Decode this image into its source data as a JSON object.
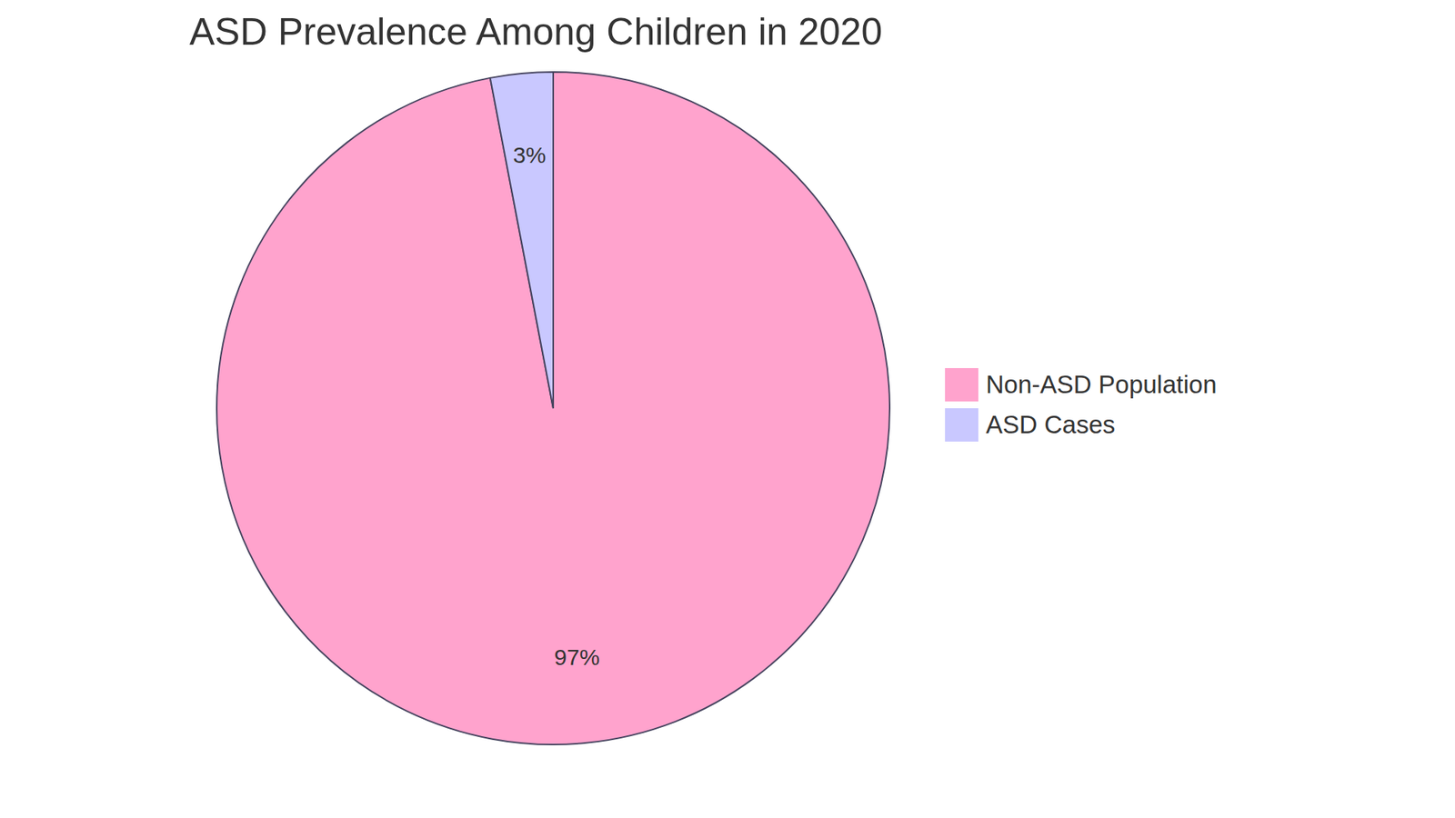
{
  "chart_data": {
    "type": "pie",
    "title": "ASD Prevalence Among Children in 2020",
    "categories": [
      "Non-ASD Population",
      "ASD Cases"
    ],
    "values": [
      97,
      3
    ],
    "value_labels": [
      "97%",
      "3%"
    ],
    "colors": [
      "#FFA3CD",
      "#C9C8FF"
    ],
    "data_labels": true,
    "legend": "right"
  }
}
